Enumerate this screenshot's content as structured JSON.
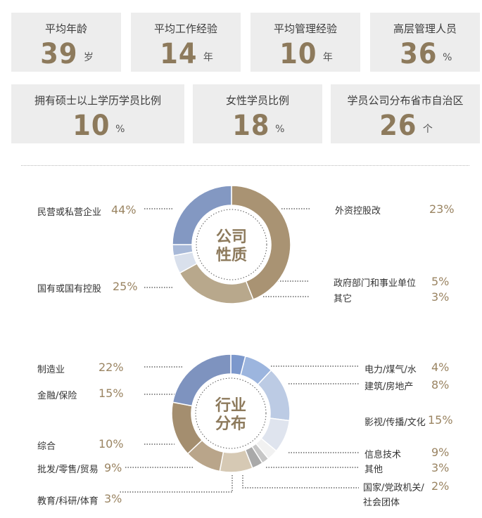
{
  "stats": [
    {
      "label": "平均年龄",
      "value": "39",
      "unit": "岁"
    },
    {
      "label": "平均工作经验",
      "value": "14",
      "unit": "年"
    },
    {
      "label": "平均管理经验",
      "value": "10",
      "unit": "年"
    },
    {
      "label": "高层管理人员",
      "value": "36",
      "unit": "%"
    },
    {
      "label": "拥有硕士以上学历学员比例",
      "value": "10",
      "unit": "%"
    },
    {
      "label": "女性学员比例",
      "value": "18",
      "unit": "%"
    },
    {
      "label": "学员公司分布省市自治区",
      "value": "26",
      "unit": "个"
    }
  ],
  "chart_data": [
    {
      "type": "pie",
      "title": "公司性质",
      "categories": [
        "民营或私营企业",
        "外资控股改",
        "政府部门和事业单位",
        "其它",
        "国有或国有控股"
      ],
      "values": [
        44,
        23,
        5,
        3,
        25
      ],
      "value_labels": [
        "44%",
        "23%",
        "5%",
        "3%",
        "25%"
      ],
      "colors": [
        "#a99373",
        "#b8a88c",
        "#d9e0ec",
        "#a8b9d8",
        "#8398c2"
      ]
    },
    {
      "type": "pie",
      "title": "行业分布",
      "categories": [
        "电力/煤气/水",
        "建筑/房地产",
        "影视/传播/文化",
        "信息技术",
        "其他",
        "国家/党政机关/社会团体",
        "教育/科研/体育",
        "批发/零售/贸易",
        "综合",
        "金融/保险",
        "制造业"
      ],
      "values": [
        4,
        8,
        15,
        9,
        3,
        2,
        3,
        9,
        10,
        15,
        22
      ],
      "value_labels": [
        "4%",
        "8%",
        "15%",
        "9%",
        "3%",
        "2%",
        "3%",
        "9%",
        "10%",
        "15%",
        "22%"
      ],
      "colors": [
        "#7c98cc",
        "#9cb5de",
        "#bccbe4",
        "#dfe4ee",
        "#f1f1f1",
        "#c6c6c6",
        "#a9a9a9",
        "#d6c9b4",
        "#b9a58a",
        "#a48e6f",
        "#7e93bf"
      ]
    }
  ]
}
